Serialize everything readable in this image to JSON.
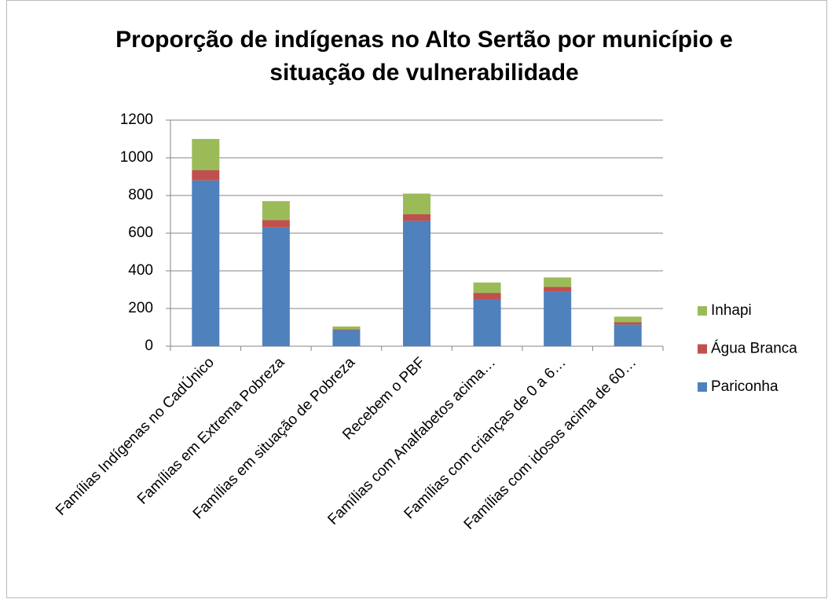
{
  "chart_data": {
    "type": "stacked_bar",
    "title": "Proporção de indígenas no Alto Sertão por município e situação de vulnerabilidade",
    "categories": [
      "Famílias Indígenas no CadÚnico",
      "Famílias em Extrema Pobreza",
      "Famílias em situação de Pobreza",
      "Recebem o PBF",
      "Famílias com Analfabetos acima…",
      "Famílias com crianças de 0 a 6…",
      "Famílias com idosos acima de 60…"
    ],
    "series": [
      {
        "name": "Pariconha",
        "color": "#4f81bd",
        "values": [
          880,
          630,
          85,
          665,
          250,
          290,
          115
        ]
      },
      {
        "name": "Água Branca",
        "color": "#c0504d",
        "values": [
          55,
          40,
          5,
          35,
          33,
          25,
          12
        ]
      },
      {
        "name": "Inhapi",
        "color": "#9bbb59",
        "values": [
          165,
          100,
          15,
          110,
          55,
          50,
          30
        ]
      }
    ],
    "ylim": [
      0,
      1200
    ],
    "yticks": [
      0,
      200,
      400,
      600,
      800,
      1000,
      1200
    ],
    "grid": true,
    "legend": "right"
  }
}
